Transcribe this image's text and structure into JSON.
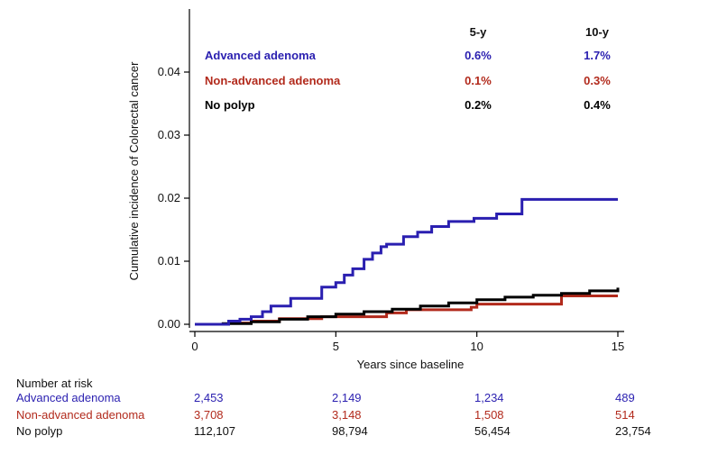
{
  "chart_data": {
    "type": "line",
    "step": true,
    "xlabel": "Years since baseline",
    "ylabel": "Cumulative incidence of Colorectal cancer",
    "xlim": [
      0,
      15
    ],
    "ylim": [
      0,
      0.05
    ],
    "x_ticks": [
      0,
      5,
      10,
      15
    ],
    "y_ticks": [
      "0.00",
      "0.01",
      "0.02",
      "0.03",
      "0.04"
    ],
    "grid": false,
    "colors": {
      "advanced": "#2a1fb0",
      "nonadvanced": "#b22a1c",
      "nopolyp": "#000000"
    },
    "series": [
      {
        "name": "Advanced adenoma",
        "color": "#2a1fb0",
        "x": [
          0,
          1.2,
          1.6,
          2.0,
          2.4,
          2.7,
          3.4,
          4.5,
          5.0,
          5.3,
          5.6,
          6.0,
          6.3,
          6.6,
          6.8,
          7.4,
          7.9,
          8.4,
          9.0,
          9.9,
          10.7,
          11.6,
          15.0
        ],
        "y": [
          0,
          0.0005,
          0.0008,
          0.0012,
          0.002,
          0.0029,
          0.0041,
          0.0059,
          0.0066,
          0.0078,
          0.0088,
          0.0103,
          0.0113,
          0.0123,
          0.0127,
          0.0139,
          0.0146,
          0.0155,
          0.0163,
          0.0168,
          0.0175,
          0.0198,
          0.0198
        ]
      },
      {
        "name": "Non-advanced adenoma",
        "color": "#b22a1c",
        "x": [
          0,
          1.2,
          2.0,
          3.0,
          4.5,
          6.8,
          7.5,
          9.8,
          10.0,
          12.9,
          13.0,
          15.0
        ],
        "y": [
          0,
          0.0002,
          0.0005,
          0.0009,
          0.0012,
          0.0018,
          0.0023,
          0.0027,
          0.0032,
          0.0032,
          0.0045,
          0.0045
        ]
      },
      {
        "name": "No polyp",
        "color": "#000000",
        "x": [
          0,
          1,
          2,
          3,
          4,
          5,
          6,
          7,
          8,
          9,
          10,
          11,
          12,
          13,
          14,
          15
        ],
        "y": [
          0,
          0.0001,
          0.0004,
          0.0008,
          0.0012,
          0.0016,
          0.002,
          0.0024,
          0.0029,
          0.0034,
          0.0039,
          0.0043,
          0.0046,
          0.0049,
          0.0053,
          0.0058
        ]
      }
    ],
    "inset_table": {
      "headers": [
        "5-y",
        "10-y"
      ],
      "rows": [
        {
          "label": "Advanced adenoma",
          "color": "#2a1fb0",
          "values": [
            "0.6%",
            "1.7%"
          ]
        },
        {
          "label": "Non-advanced adenoma",
          "color": "#b22a1c",
          "values": [
            "0.1%",
            "0.3%"
          ]
        },
        {
          "label": "No polyp",
          "color": "#000000",
          "values": [
            "0.2%",
            "0.4%"
          ]
        }
      ]
    }
  },
  "risk_table": {
    "title": "Number at risk",
    "rows": [
      {
        "label": "Advanced adenoma",
        "class": "adv",
        "values": [
          "2,453",
          "2,149",
          "1,234",
          "489"
        ]
      },
      {
        "label": "Non-advanced adenoma",
        "class": "nonadv",
        "values": [
          "3,708",
          "3,148",
          "1,508",
          "514"
        ]
      },
      {
        "label": "No polyp",
        "class": "",
        "values": [
          "112,107",
          "98,794",
          "56,454",
          "23,754"
        ]
      }
    ]
  }
}
